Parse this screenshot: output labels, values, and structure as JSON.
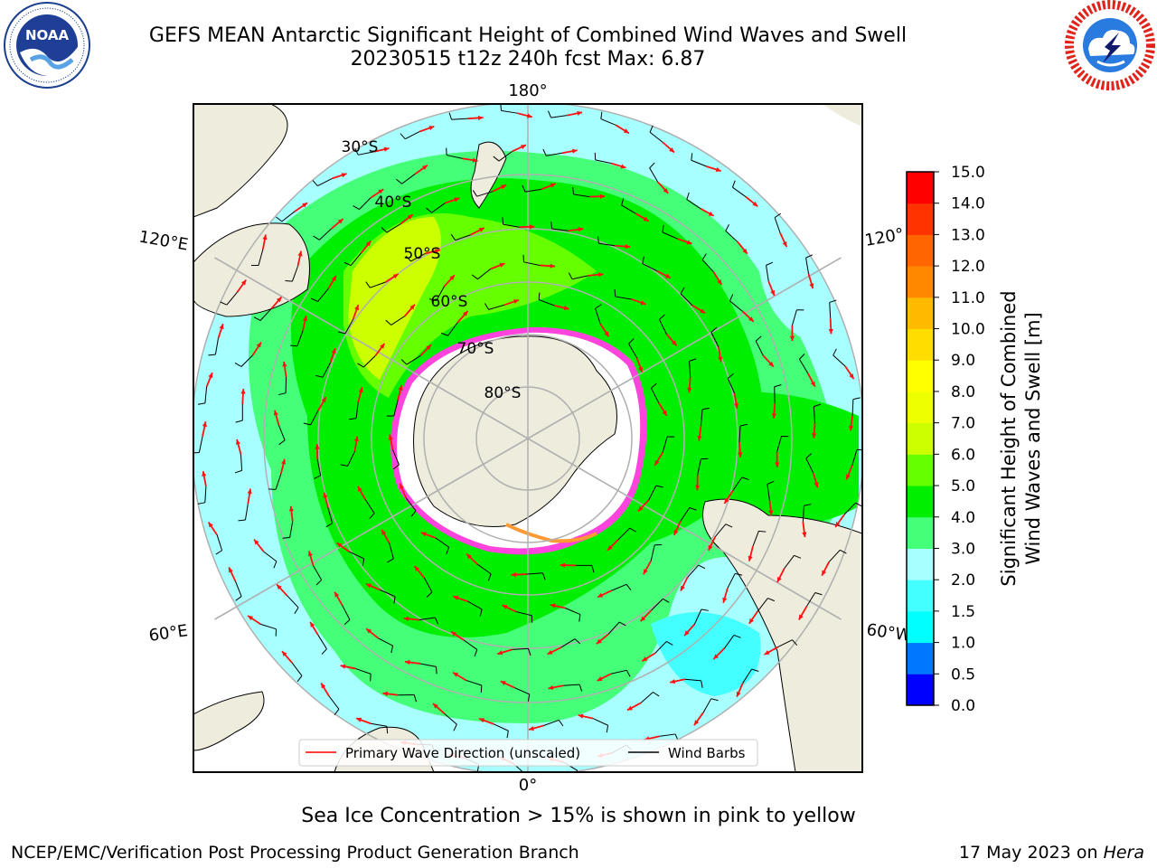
{
  "header": {
    "title_line1": "GEFS MEAN Antarctic Significant Height of Combined Wind Waves and Swell",
    "title_line2": "20230515 t12z 240h fcst   Max: 6.87"
  },
  "logos": {
    "left": {
      "name": "noaa-logo",
      "text": "NOAA",
      "ring_text": "NATIONAL OCEANIC AND ATMOSPHERIC ADMINISTRATION · U.S. DEPARTMENT OF COMMERCE"
    },
    "right": {
      "name": "nws-logo",
      "ring_text": "NATIONAL WEATHER SERVICE"
    }
  },
  "map": {
    "projection": "south-polar-stereographic",
    "longitude_labels": {
      "top": "180°",
      "bottom": "0°",
      "left_upper": "120°E",
      "left_lower": "60°E",
      "right_upper": "120°",
      "right_lower": "60°W"
    },
    "latitude_labels": [
      "30°S",
      "40°S",
      "50°S",
      "60°S",
      "70°S",
      "80°S"
    ],
    "colors": {
      "land": "#eeecdc",
      "ice_shelf": "#ffffff",
      "sea_ice_edge": "#ff44dd",
      "grid": "#b0b0b0",
      "arrow": "#ff1111",
      "barb": "#000000"
    },
    "legend": {
      "wave": "Primary Wave Direction (unscaled)",
      "wind": "Wind Barbs",
      "wave_color": "#ff0000",
      "wind_color": "#000000"
    }
  },
  "colorbar": {
    "label_line1": "Significant Height of Combined",
    "label_line2": "Wind Waves and Swell [m]",
    "ticks": [
      "0.0",
      "0.5",
      "1.0",
      "1.5",
      "2.0",
      "3.0",
      "4.0",
      "5.0",
      "6.0",
      "7.0",
      "8.0",
      "9.0",
      "10.0",
      "11.0",
      "12.0",
      "13.0",
      "14.0",
      "15.0"
    ],
    "colors": [
      "#0000ff",
      "#0077ff",
      "#00ffff",
      "#44ffff",
      "#a8ffff",
      "#44ff77",
      "#00ee00",
      "#66ff00",
      "#ccff00",
      "#eeff00",
      "#ffff00",
      "#ffdd00",
      "#ffbb00",
      "#ff8800",
      "#ff6600",
      "#ff3300",
      "#ff0000"
    ]
  },
  "footer": {
    "ice_note": "Sea Ice Concentration > 15% is shown in pink to yellow",
    "left": "NCEP/EMC/Verification Post Processing Product Generation Branch",
    "right_prefix": "17 May 2023 on ",
    "right_host": "Hera"
  }
}
